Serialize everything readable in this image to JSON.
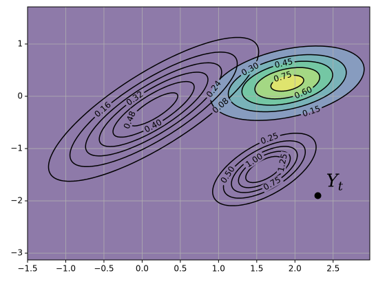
{
  "chart_data": {
    "type": "contour",
    "xlim": [
      -1.5,
      2.98
    ],
    "ylim": [
      -3.13,
      1.71
    ],
    "xticks": [
      {
        "value": -1.5,
        "label": "−1.5"
      },
      {
        "value": -1.0,
        "label": "−1.0"
      },
      {
        "value": -0.5,
        "label": "−0.5"
      },
      {
        "value": 0,
        "label": "0.0"
      },
      0.5,
      {
        "value": 1,
        "label": "1.0"
      },
      1.5,
      {
        "value": 2,
        "label": "2.0"
      },
      2.5
    ],
    "yticks": [
      {
        "value": -3,
        "label": "−3"
      },
      {
        "value": -2,
        "label": "−2"
      },
      {
        "value": -1,
        "label": "−1"
      },
      0,
      1
    ],
    "grid": true,
    "background": "#8e7aa9",
    "line_color": "#000000",
    "components": [
      {
        "mean": [
          0.15,
          -0.25
        ],
        "cov": [
          [
            0.5,
            0.4
          ],
          [
            0.4,
            0.5
          ]
        ],
        "levels": [
          0.08,
          0.16,
          0.24,
          0.32,
          0.4,
          0.48
        ],
        "level_labels": [
          "0.08",
          "0.16",
          "0.24",
          "0.32",
          "0.40",
          "0.48"
        ]
      },
      {
        "mean": [
          1.9,
          0.25
        ],
        "cov": [
          [
            0.3,
            0.08
          ],
          [
            0.08,
            0.15
          ]
        ],
        "levels": [
          0.15,
          0.3,
          0.45,
          0.6,
          0.75
        ],
        "level_labels": [
          "0.15",
          "0.30",
          "0.45",
          "0.60",
          "0.75"
        ],
        "fill_colors": [
          "#879cbf",
          "#79b3b9",
          "#74c7a4",
          "#a4d884",
          "#dfe46e"
        ]
      },
      {
        "mean": [
          1.6,
          -1.4
        ],
        "cov": [
          [
            0.124,
            0.078
          ],
          [
            0.078,
            0.13
          ]
        ],
        "levels": [
          0.25,
          0.5,
          0.75,
          1.0,
          1.25
        ],
        "level_labels": [
          "0.25",
          "0.50",
          "0.75",
          "1.00",
          "1.25"
        ]
      }
    ],
    "point": {
      "x": 2.3,
      "y": -1.9,
      "label": "Y",
      "label_sub": "t"
    }
  }
}
